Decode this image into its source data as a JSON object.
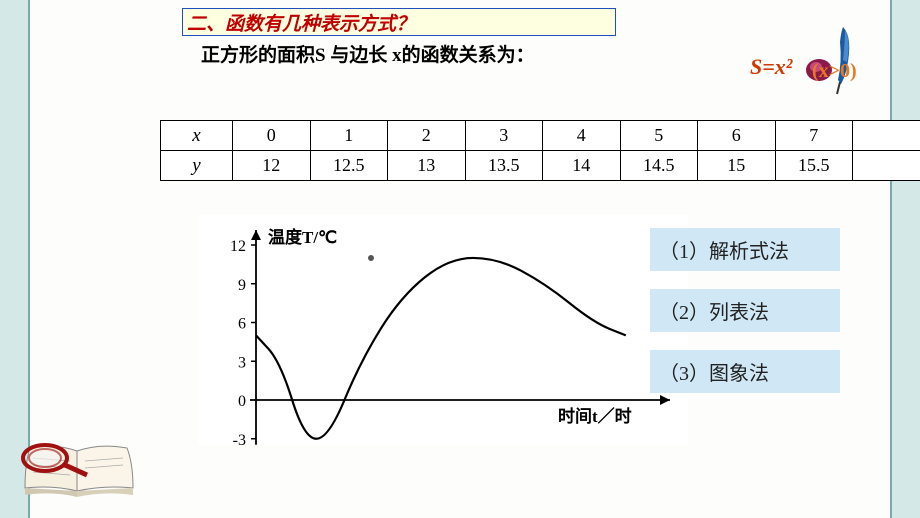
{
  "title": "二、函数有几种表示方式？",
  "subtitle": "正方形的面积S 与边长 x的函数关系为：",
  "formula": {
    "main": "S=x²",
    "domain": "(x>0)"
  },
  "table": {
    "row_headers": [
      "x",
      "y"
    ],
    "columns": [
      "0",
      "1",
      "2",
      "3",
      "4",
      "5",
      "6",
      "7",
      ""
    ],
    "values": [
      "12",
      "12.5",
      "13",
      "13.5",
      "14",
      "14.5",
      "15",
      "15.5",
      ""
    ]
  },
  "chart": {
    "type": "line",
    "y_label": "温度T/℃",
    "x_label": "时间t／时",
    "y_ticks": [
      -3,
      0,
      3,
      6,
      9,
      12
    ],
    "x_range": [
      0,
      24
    ],
    "curve": [
      [
        0,
        5
      ],
      [
        1.5,
        3
      ],
      [
        3,
        -3
      ],
      [
        4.5,
        -3
      ],
      [
        6.5,
        3
      ],
      [
        9,
        8
      ],
      [
        12,
        11
      ],
      [
        15,
        11
      ],
      [
        18,
        9
      ],
      [
        21,
        6
      ],
      [
        23,
        5
      ]
    ],
    "axis_color": "#000000",
    "curve_color": "#000000",
    "background": "#ffffff",
    "line_width": 2.2,
    "label_fontsize": 16
  },
  "methods": [
    "（1）解析式法",
    "（2）列表法",
    "（3）图象法"
  ],
  "colors": {
    "page_bg": "#d5e8e8",
    "panel_bg": "#fdfdfc",
    "title_bg": "#fdffe0",
    "title_border": "#2050c0",
    "title_text": "#c00000",
    "method_bg": "#d0e8f5",
    "formula_main": "#d13800",
    "formula_domain": "#e67a20"
  }
}
